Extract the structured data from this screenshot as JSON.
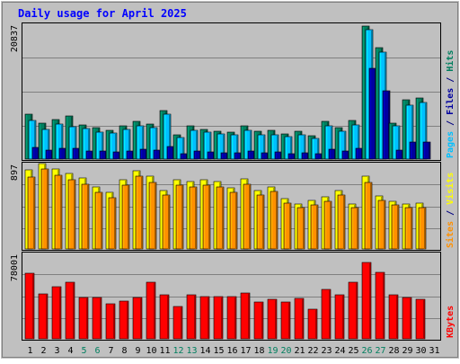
{
  "chart_data": {
    "type": "bar",
    "title": "Daily usage for April 2025",
    "colors": {
      "background": "#c0c0c0",
      "plot_bg": "#c0c0c0",
      "grid": "#808080",
      "title": "#0000ff",
      "hits": "#007f5f",
      "files": "#00c0ff",
      "pages": "#0000a0",
      "visits": "#ffff00",
      "sites": "#ff9000",
      "kbytes": "#ff0000",
      "weekday_label": "#000000",
      "weekend_label": "#007f5f"
    },
    "categories": [
      "1",
      "2",
      "3",
      "4",
      "5",
      "6",
      "7",
      "8",
      "9",
      "10",
      "11",
      "12",
      "13",
      "14",
      "15",
      "16",
      "17",
      "18",
      "19",
      "20",
      "21",
      "22",
      "23",
      "24",
      "25",
      "26",
      "27",
      "28",
      "29",
      "30",
      "31"
    ],
    "weekend_days": [
      "5",
      "6",
      "12",
      "13",
      "19",
      "20",
      "26",
      "27"
    ],
    "panels": [
      {
        "id": "hits",
        "max_label": "20837",
        "ylim": [
          0,
          20837
        ],
        "side_labels": [
          {
            "text": "Pages",
            "color": "#00c0ff"
          },
          {
            "text": " / ",
            "color": "#000080"
          },
          {
            "text": "Files",
            "color": "#0000a0"
          },
          {
            "text": " / ",
            "color": "#000080"
          },
          {
            "text": "Hits",
            "color": "#007f5f"
          }
        ],
        "series": [
          {
            "name": "Hits",
            "color": "#007f5f",
            "values": [
              6900,
              5500,
              6100,
              6700,
              5300,
              4800,
              4500,
              5200,
              5800,
              5400,
              7500,
              3800,
              5100,
              4600,
              4300,
              4100,
              5100,
              4300,
              4400,
              3900,
              4300,
              3600,
              5900,
              4900,
              6000,
              20500,
              17200,
              5600,
              9100,
              9500,
              null
            ]
          },
          {
            "name": "Files",
            "color": "#00c0ff",
            "values": [
              6000,
              4600,
              5400,
              5000,
              4700,
              4200,
              4000,
              4600,
              5100,
              4800,
              6900,
              3400,
              4500,
              4100,
              3900,
              3700,
              4400,
              3700,
              3800,
              3500,
              3800,
              3200,
              5200,
              4300,
              5300,
              20000,
              16500,
              5100,
              8400,
              8800,
              null
            ]
          },
          {
            "name": "Pages",
            "color": "#0000a0",
            "values": [
              1800,
              1400,
              1600,
              1700,
              1300,
              1200,
              1100,
              1300,
              1500,
              1400,
              1900,
              900,
              1300,
              1100,
              1000,
              1000,
              1200,
              1000,
              1100,
              900,
              1000,
              800,
              1500,
              1200,
              1600,
              14000,
              10500,
              1400,
              2600,
              2700,
              null
            ]
          }
        ]
      },
      {
        "id": "visits",
        "max_label": "897",
        "ylim": [
          0,
          897
        ],
        "side_labels": [
          {
            "text": "Sites",
            "color": "#ff9000"
          },
          {
            "text": " / ",
            "color": "#000080"
          },
          {
            "text": "Visits",
            "color": "#ffff00"
          }
        ],
        "series": [
          {
            "name": "Visits",
            "color": "#ffff00",
            "values": [
              835,
              897,
              844,
              789,
              743,
              647,
              592,
              725,
              820,
              762,
              610,
              728,
              710,
              730,
              710,
              645,
              741,
              617,
              655,
              525,
              472,
              507,
              546,
              612,
              469,
              764,
              557,
              501,
              474,
              477,
              null
            ]
          },
          {
            "name": "Sites",
            "color": "#ff9000",
            "values": [
              760,
              836,
              775,
              726,
              682,
              592,
              540,
              670,
              765,
              702,
              562,
              668,
              651,
              674,
              654,
              591,
              682,
              563,
              600,
              481,
              433,
              464,
              502,
              562,
              430,
              702,
              512,
              460,
              435,
              438,
              null
            ]
          }
        ]
      },
      {
        "id": "kbytes",
        "max_label": "78001",
        "ylim": [
          0,
          78001
        ],
        "side_labels": [
          {
            "text": "KBytes",
            "color": "#ff0000"
          }
        ],
        "series": [
          {
            "name": "KBytes",
            "color": "#ff0000",
            "values": [
              59600,
              41000,
              47500,
              51500,
              38000,
              38000,
              32000,
              34500,
              38000,
              51500,
              40000,
              29500,
              40000,
              39000,
              39000,
              38500,
              42000,
              34000,
              36000,
              34000,
              37000,
              27000,
              45500,
              40000,
              52000,
              70000,
              61000,
              40000,
              37500,
              36500,
              null
            ]
          }
        ]
      }
    ]
  }
}
